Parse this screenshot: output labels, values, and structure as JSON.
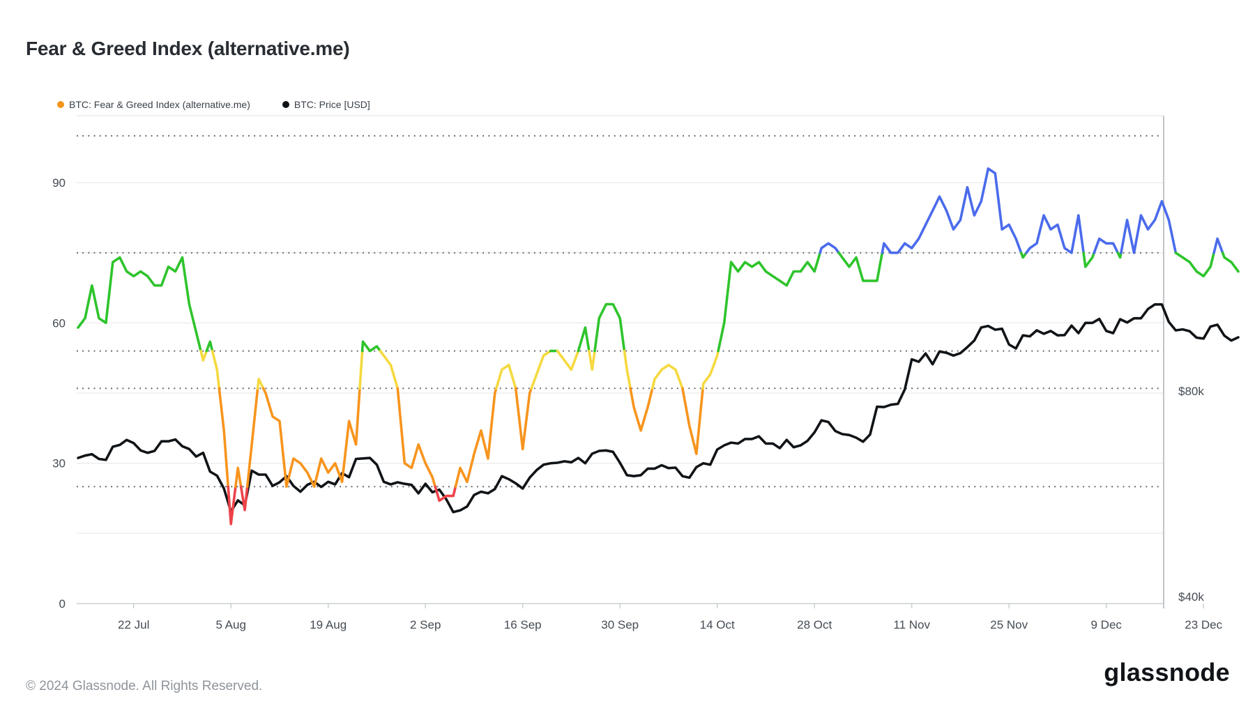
{
  "header": {
    "title": "Fear & Greed Index (alternative.me)"
  },
  "legend": [
    {
      "label": "BTC: Fear & Greed Index (alternative.me)",
      "color": "#f7941d"
    },
    {
      "label": "BTC: Price [USD]",
      "color": "#111417"
    }
  ],
  "footer": {
    "copyright": "© 2024 Glassnode. All Rights Reserved.",
    "logo_text": "glassnode"
  },
  "chart_data": {
    "type": "line",
    "title": "Fear & Greed Index (alternative.me)",
    "start_date": "2024-07-14",
    "interval_days": 1,
    "x_tick_labels": [
      "22 Jul",
      "5 Aug",
      "19 Aug",
      "2 Sep",
      "16 Sep",
      "30 Sep",
      "14 Oct",
      "28 Oct",
      "11 Nov",
      "25 Nov",
      "9 Dec",
      "23 Dec"
    ],
    "x_tick_day_indices": [
      8,
      22,
      36,
      50,
      64,
      78,
      92,
      106,
      120,
      134,
      148,
      162
    ],
    "left_axis": {
      "label": "Fear & Greed Index",
      "ticks": [
        0,
        30,
        60,
        90
      ],
      "minor_ticks": [
        15,
        45,
        75
      ],
      "range": [
        0,
        104.7
      ]
    },
    "right_axis": {
      "label": "BTC Price [USD]",
      "scale": "log2",
      "tick_labels": [
        "$40k",
        "$80k"
      ],
      "ticks_usd_thousands": [
        40,
        80
      ]
    },
    "dotted_threshold_levels": [
      100,
      75,
      54,
      46,
      25
    ],
    "grid": "on",
    "legend_position": "top-left",
    "series": [
      {
        "name": "BTC: Fear & Greed Index (alternative.me)",
        "axis": "left",
        "color_bands": [
          {
            "max": 25,
            "color": "#ed4349",
            "label": "extreme-fear-red"
          },
          {
            "max": 46,
            "color": "#f7941d",
            "label": "fear-orange"
          },
          {
            "max": 54,
            "color": "#f5d93f",
            "label": "neutral-yellow"
          },
          {
            "max": 75,
            "color": "#2ec42c",
            "label": "greed-green"
          },
          {
            "max": 101,
            "color": "#4b6bec",
            "label": "extreme-greed-blue"
          }
        ],
        "values": [
          59,
          61,
          68,
          61,
          60,
          73,
          74,
          71,
          70,
          71,
          70,
          68,
          68,
          72,
          71,
          74,
          64,
          58,
          52,
          56,
          50,
          37,
          17,
          29,
          20,
          34,
          48,
          45,
          40,
          39,
          25,
          31,
          30,
          28,
          25,
          31,
          28,
          30,
          26,
          39,
          34,
          56,
          54,
          55,
          53,
          51,
          46,
          30,
          29,
          34,
          30,
          27,
          22,
          23,
          23,
          29,
          26,
          32,
          37,
          31,
          45,
          50,
          51,
          46,
          33,
          45,
          49,
          53,
          54,
          54,
          52,
          50,
          54,
          59,
          50,
          61,
          64,
          64,
          61,
          50,
          42,
          37,
          42,
          48,
          50,
          51,
          50,
          46,
          38,
          32,
          47,
          49,
          53,
          60,
          73,
          71,
          73,
          72,
          73,
          71,
          70,
          69,
          68,
          71,
          71,
          73,
          71,
          76,
          77,
          76,
          74,
          72,
          74,
          69,
          69,
          69,
          77,
          75,
          75,
          77,
          76,
          78,
          81,
          84,
          87,
          84,
          80,
          82,
          89,
          83,
          86,
          93,
          92,
          80,
          81,
          78,
          74,
          76,
          77,
          83,
          80,
          81,
          76,
          75,
          83,
          72,
          74,
          78,
          77,
          77,
          74,
          82,
          75,
          83,
          80,
          82,
          86,
          82,
          75,
          74,
          73,
          71,
          70,
          72,
          78,
          74,
          73,
          71
        ]
      },
      {
        "name": "BTC: Price [USD]",
        "axis": "right",
        "unit": "USD thousands",
        "color": "#111417",
        "values": [
          64.3,
          64.8,
          65.1,
          64.1,
          63.9,
          66.7,
          67.1,
          68.2,
          67.5,
          65.9,
          65.4,
          65.8,
          67.9,
          67.9,
          68.3,
          66.8,
          66.2,
          64.6,
          65.4,
          61.5,
          60.7,
          58.2,
          54.0,
          56.0,
          55.1,
          61.7,
          60.9,
          60.9,
          58.7,
          59.4,
          60.6,
          58.7,
          57.6,
          58.9,
          59.5,
          58.5,
          59.5,
          59.0,
          61.2,
          60.4,
          64.1,
          64.2,
          64.3,
          62.9,
          59.5,
          59.0,
          59.4,
          59.1,
          58.9,
          57.3,
          59.1,
          57.5,
          58.0,
          56.2,
          53.9,
          54.2,
          54.9,
          57.0,
          57.6,
          57.3,
          58.1,
          60.6,
          60.0,
          59.2,
          58.2,
          60.3,
          61.8,
          62.9,
          63.2,
          63.3,
          63.6,
          63.4,
          64.3,
          63.2,
          65.2,
          65.8,
          65.9,
          65.6,
          63.3,
          60.8,
          60.6,
          60.8,
          62.1,
          62.1,
          62.8,
          62.2,
          62.3,
          60.6,
          60.3,
          62.4,
          63.2,
          62.9,
          66.1,
          67.0,
          67.6,
          67.4,
          68.4,
          68.4,
          69.0,
          67.4,
          67.4,
          66.4,
          68.2,
          66.6,
          67.0,
          68.0,
          69.9,
          72.7,
          72.3,
          70.2,
          69.5,
          69.3,
          68.7,
          67.8,
          69.4,
          76.0,
          75.9,
          76.5,
          76.7,
          80.4,
          88.7,
          88.0,
          90.4,
          87.3,
          91.0,
          90.6,
          89.8,
          90.5,
          92.3,
          94.3,
          98.4,
          98.9,
          97.7,
          98.0,
          93.1,
          91.9,
          95.9,
          95.6,
          97.5,
          96.4,
          97.3,
          95.9,
          96.0,
          99.0,
          96.6,
          99.9,
          99.9,
          101.2,
          97.3,
          96.6,
          101.1,
          100.0,
          101.4,
          101.4,
          104.5,
          106.1,
          106.1,
          100.2,
          97.5,
          97.8,
          97.2,
          95.2,
          94.9,
          98.7,
          99.3,
          95.8,
          94.3,
          95.3
        ]
      }
    ],
    "colors": {
      "grid_light": "#ededee",
      "top_border": "#e9ebec",
      "bottom_axis": "#ccd0d4",
      "right_border": "#b9bdc2",
      "dotted_line": "#595d61",
      "axis_text": "#454c54"
    }
  }
}
